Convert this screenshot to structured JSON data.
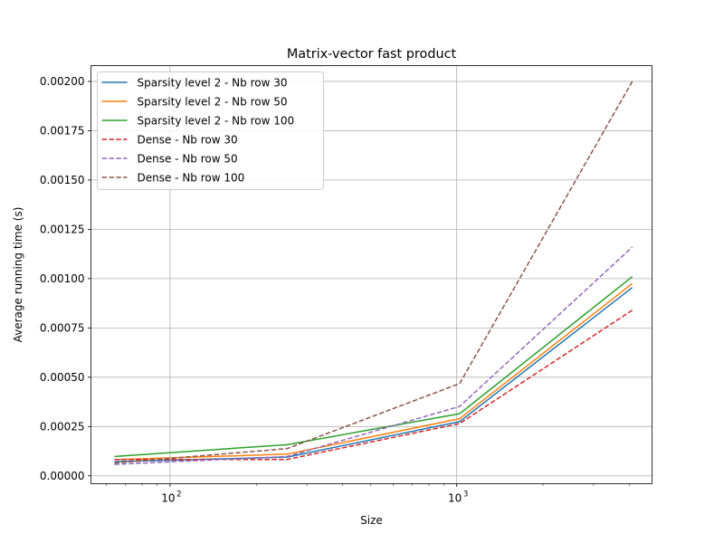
{
  "chart_data": {
    "type": "line",
    "title": "Matrix-vector fast product",
    "xlabel": "Size",
    "ylabel": "Average running time (s)",
    "x_scale": "log",
    "xlim": [
      53.0,
      4800.0
    ],
    "ylim": [
      -4e-05,
      0.00208
    ],
    "x_ticks": [
      {
        "value": 100,
        "base": "10",
        "exp": "2"
      },
      {
        "value": 1000,
        "base": "10",
        "exp": "3"
      }
    ],
    "y_ticks": [
      {
        "value": 0.0,
        "label": "0.00000"
      },
      {
        "value": 0.00025,
        "label": "0.00025"
      },
      {
        "value": 0.0005,
        "label": "0.00050"
      },
      {
        "value": 0.00075,
        "label": "0.00075"
      },
      {
        "value": 0.001,
        "label": "0.00100"
      },
      {
        "value": 0.00125,
        "label": "0.00125"
      },
      {
        "value": 0.0015,
        "label": "0.00150"
      },
      {
        "value": 0.00175,
        "label": "0.00175"
      },
      {
        "value": 0.002,
        "label": "0.00200"
      }
    ],
    "grid": true,
    "legend_position": "upper-left",
    "x": [
      64,
      256,
      1024,
      4096
    ],
    "series": [
      {
        "name": "Sparsity level 2 - Nb row 30",
        "values": [
          7.2e-05,
          9.5e-05,
          0.000275,
          0.000955
        ],
        "color": "#1f77b4",
        "style": "solid"
      },
      {
        "name": "Sparsity level 2 - Nb row 50",
        "values": [
          8.2e-05,
          0.00011,
          0.00029,
          0.000975
        ],
        "color": "#ff7f0e",
        "style": "solid"
      },
      {
        "name": "Sparsity level 2 - Nb row 100",
        "values": [
          9.8e-05,
          0.000158,
          0.000315,
          0.00101
        ],
        "color": "#2ca02c",
        "style": "solid"
      },
      {
        "name": "Dense - Nb row 30",
        "values": [
          8.3e-05,
          8.3e-05,
          0.000265,
          0.00084
        ],
        "color": "#d62728",
        "style": "dashed"
      },
      {
        "name": "Dense - Nb row 50",
        "values": [
          5.8e-05,
          9.8e-05,
          0.000352,
          0.00116
        ],
        "color": "#9467bd",
        "style": "dashed"
      },
      {
        "name": "Dense - Nb row 100",
        "values": [
          6.5e-05,
          0.000138,
          0.000468,
          0.002
        ],
        "color": "#8c564b",
        "style": "dashed"
      }
    ]
  }
}
